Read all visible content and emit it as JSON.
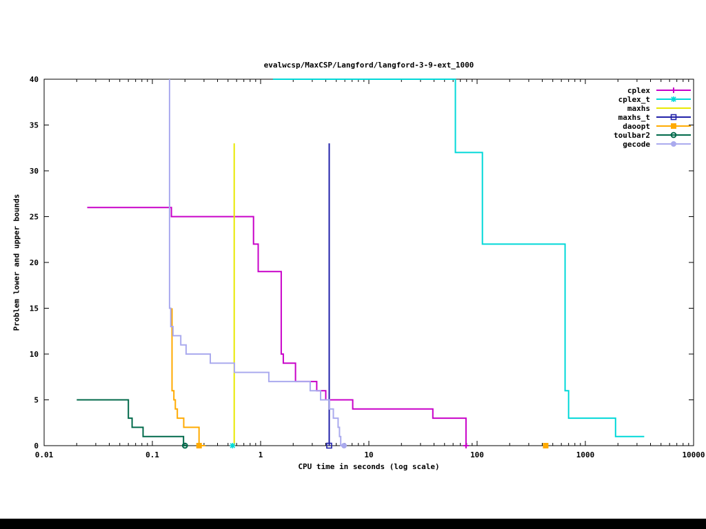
{
  "window": {
    "background": "#ffffff",
    "bottom_bar_color": "#000000"
  },
  "chart_data": {
    "type": "line",
    "title": "evalwcsp/MaxCSP/Langford/langford-3-9-ext_1000",
    "xlabel": "CPU time in seconds (log scale)",
    "ylabel": "Problem lower and upper bounds",
    "x_scale": "log",
    "xlim": [
      0.01,
      10000
    ],
    "ylim": [
      0,
      40
    ],
    "x_ticks": [
      0.01,
      0.1,
      1,
      10,
      100,
      1000,
      10000
    ],
    "x_tick_labels": [
      "0.01",
      "0.1",
      "1",
      "10",
      "100",
      "1000",
      "10000"
    ],
    "y_ticks": [
      0,
      5,
      10,
      15,
      20,
      25,
      30,
      35,
      40
    ],
    "y_tick_labels": [
      "0",
      "5",
      "10",
      "15",
      "20",
      "25",
      "30",
      "35",
      "40"
    ],
    "grid": false,
    "legend_position": "top-right-inside",
    "axis_color": "#000000",
    "series": [
      {
        "name": "cplex",
        "color": "#c800c8",
        "marker": "plus",
        "points": [
          [
            0.025,
            26
          ],
          [
            0.15,
            26
          ],
          [
            0.15,
            25
          ],
          [
            0.86,
            25
          ],
          [
            0.86,
            22
          ],
          [
            0.95,
            22
          ],
          [
            0.95,
            19
          ],
          [
            1.55,
            19
          ],
          [
            1.55,
            10
          ],
          [
            1.62,
            10
          ],
          [
            1.62,
            9
          ],
          [
            2.1,
            9
          ],
          [
            2.1,
            7
          ],
          [
            3.3,
            7
          ],
          [
            3.3,
            6
          ],
          [
            4.0,
            6
          ],
          [
            4.0,
            5
          ],
          [
            7.1,
            5
          ],
          [
            7.1,
            4
          ],
          [
            39,
            4
          ],
          [
            39,
            3
          ],
          [
            79,
            3
          ],
          [
            79,
            0
          ],
          [
            83,
            0
          ]
        ],
        "marker_points": [
          [
            79,
            0
          ]
        ]
      },
      {
        "name": "cplex_t",
        "color": "#00d8d8",
        "marker": "star",
        "points": [
          [
            1.3,
            40
          ],
          [
            63,
            40
          ],
          [
            63,
            32
          ],
          [
            112,
            32
          ],
          [
            112,
            22
          ],
          [
            650,
            22
          ],
          [
            650,
            6
          ],
          [
            700,
            6
          ],
          [
            700,
            3
          ],
          [
            1900,
            3
          ],
          [
            1900,
            1
          ],
          [
            3500,
            1
          ]
        ],
        "marker_points": [
          [
            0.55,
            0
          ]
        ]
      },
      {
        "name": "maxhs",
        "color": "#e8e800",
        "marker": "none",
        "points": [
          [
            0.57,
            0
          ],
          [
            0.57,
            33
          ]
        ],
        "marker_points": []
      },
      {
        "name": "maxhs_t",
        "color": "#2020a8",
        "marker": "square-open",
        "points": [
          [
            4.3,
            0
          ],
          [
            4.3,
            33
          ]
        ],
        "marker_points": [
          [
            4.3,
            0
          ]
        ]
      },
      {
        "name": "daoopt",
        "color": "#ffaa00",
        "marker": "square-filled",
        "points": [
          [
            0.152,
            15
          ],
          [
            0.152,
            6
          ],
          [
            0.158,
            6
          ],
          [
            0.158,
            5
          ],
          [
            0.163,
            5
          ],
          [
            0.163,
            4
          ],
          [
            0.17,
            4
          ],
          [
            0.17,
            3
          ],
          [
            0.195,
            3
          ],
          [
            0.195,
            2
          ],
          [
            0.27,
            2
          ],
          [
            0.27,
            0
          ],
          [
            0.31,
            0
          ]
        ],
        "marker_points": [
          [
            0.27,
            0
          ],
          [
            430,
            0
          ]
        ]
      },
      {
        "name": "toulbar2",
        "color": "#00694a",
        "marker": "circle-open",
        "points": [
          [
            0.02,
            5
          ],
          [
            0.06,
            5
          ],
          [
            0.06,
            3
          ],
          [
            0.065,
            3
          ],
          [
            0.065,
            2
          ],
          [
            0.082,
            2
          ],
          [
            0.082,
            1
          ],
          [
            0.194,
            1
          ],
          [
            0.194,
            0
          ],
          [
            0.21,
            0
          ]
        ],
        "marker_points": [
          [
            0.2,
            0
          ]
        ]
      },
      {
        "name": "gecode",
        "color": "#aaaaee",
        "marker": "circle-filled",
        "points": [
          [
            0.144,
            40
          ],
          [
            0.144,
            15
          ],
          [
            0.148,
            15
          ],
          [
            0.148,
            13
          ],
          [
            0.155,
            13
          ],
          [
            0.155,
            12
          ],
          [
            0.183,
            12
          ],
          [
            0.183,
            11
          ],
          [
            0.205,
            11
          ],
          [
            0.205,
            10
          ],
          [
            0.343,
            10
          ],
          [
            0.343,
            9
          ],
          [
            0.573,
            9
          ],
          [
            0.573,
            8
          ],
          [
            1.19,
            8
          ],
          [
            1.19,
            7
          ],
          [
            2.87,
            7
          ],
          [
            2.87,
            6
          ],
          [
            3.58,
            6
          ],
          [
            3.58,
            5
          ],
          [
            4.33,
            5
          ],
          [
            4.33,
            4
          ],
          [
            4.7,
            4
          ],
          [
            4.7,
            3
          ],
          [
            5.2,
            3
          ],
          [
            5.2,
            2
          ],
          [
            5.35,
            2
          ],
          [
            5.35,
            1
          ],
          [
            5.5,
            1
          ],
          [
            5.5,
            0
          ],
          [
            5.75,
            0
          ]
        ],
        "marker_points": [
          [
            5.9,
            0
          ]
        ]
      }
    ],
    "legend": [
      {
        "label": "cplex",
        "series": "cplex"
      },
      {
        "label": "cplex_t",
        "series": "cplex_t"
      },
      {
        "label": "maxhs",
        "series": "maxhs"
      },
      {
        "label": "maxhs_t",
        "series": "maxhs_t"
      },
      {
        "label": "daoopt",
        "series": "daoopt"
      },
      {
        "label": "toulbar2",
        "series": "toulbar2"
      },
      {
        "label": "gecode",
        "series": "gecode"
      }
    ]
  }
}
